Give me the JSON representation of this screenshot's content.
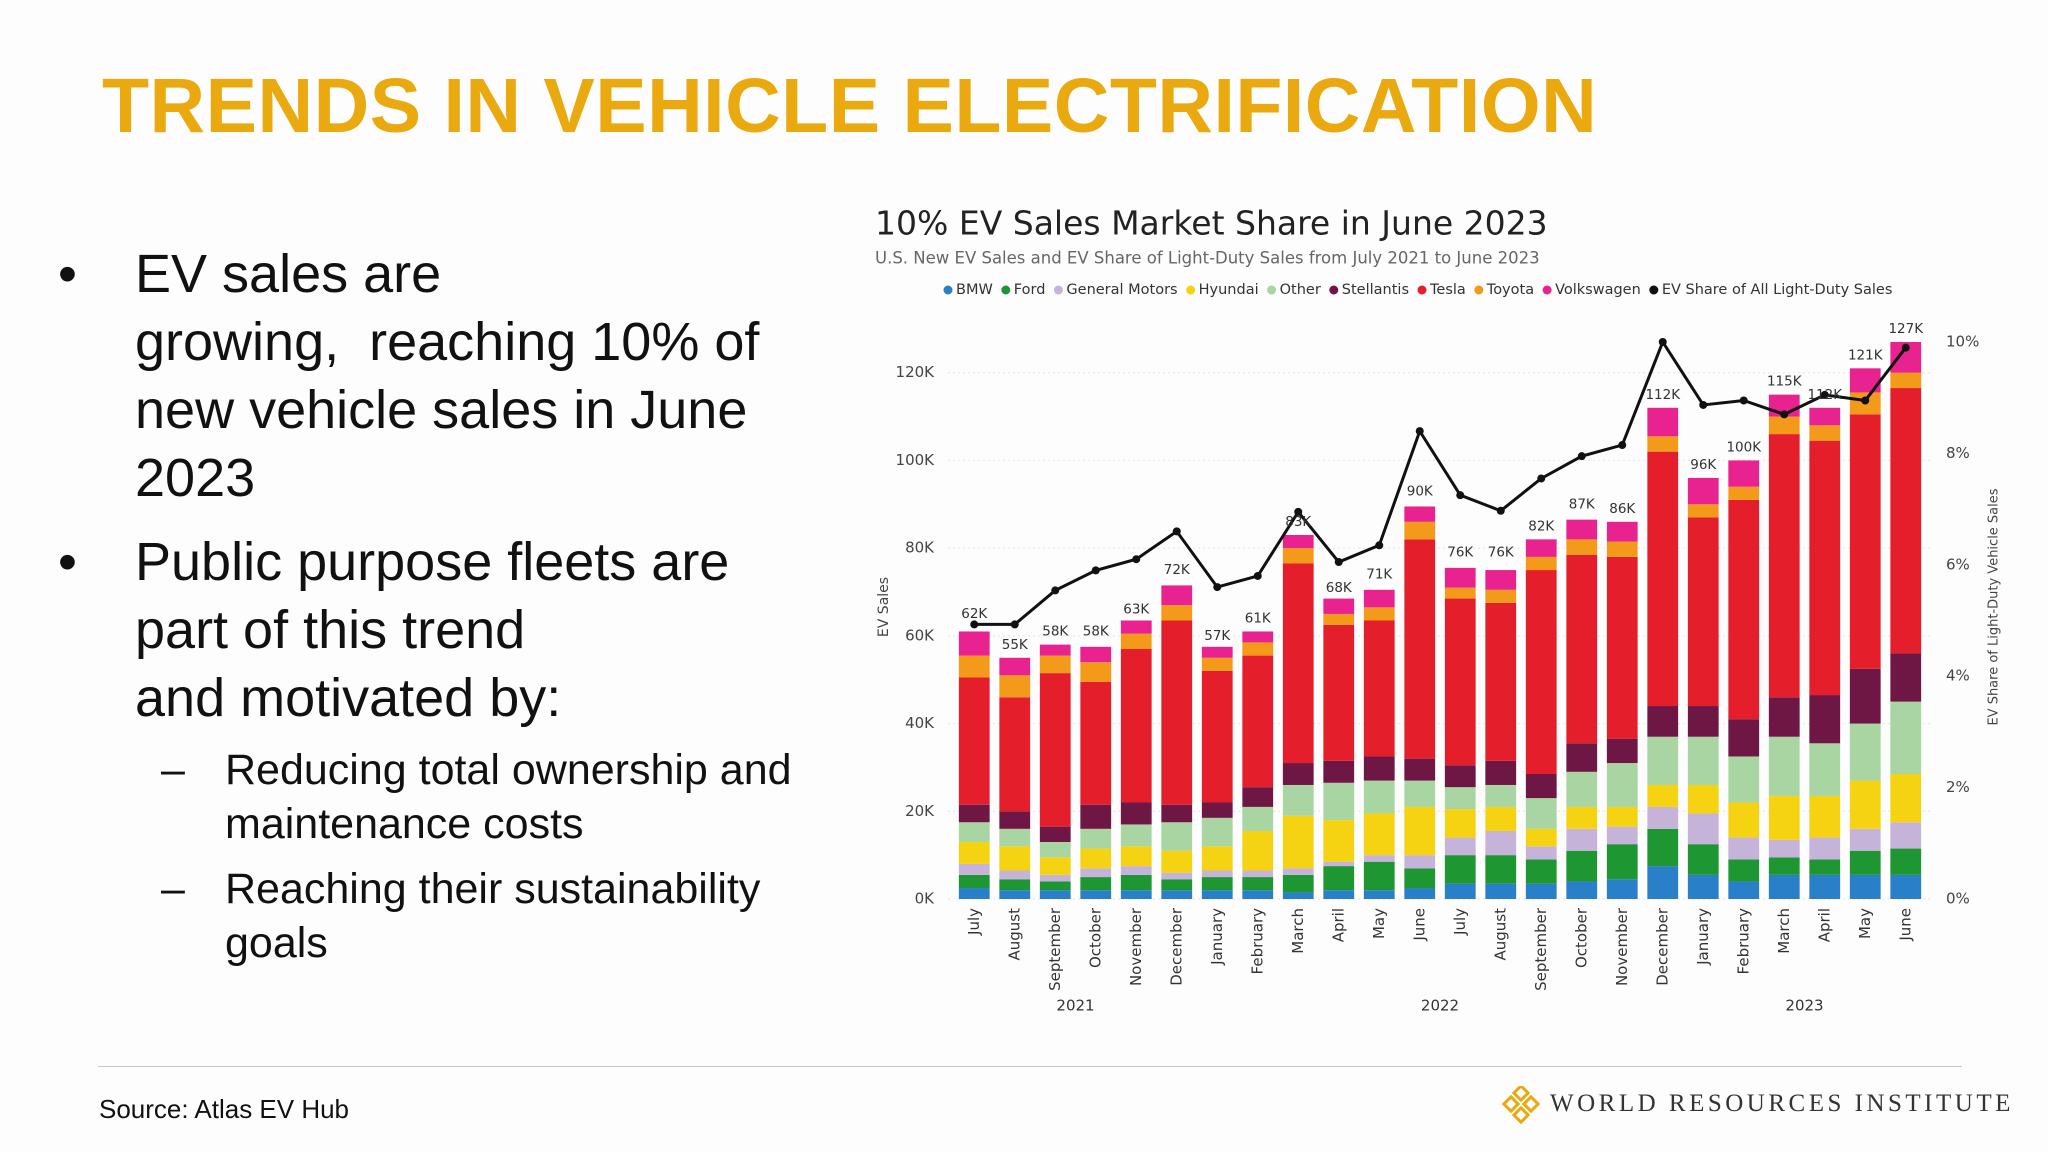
{
  "slide": {
    "title": "TRENDS IN VEHICLE ELECTRIFICATION",
    "bullets": [
      {
        "lines": [
          "EV sales are",
          "growing,  reaching 10% of",
          "new vehicle sales in June",
          "2023"
        ],
        "sub": []
      },
      {
        "lines": [
          "Public purpose fleets are",
          "part of this trend",
          "and motivated by:"
        ],
        "sub": [
          {
            "lines": [
              "Reducing total ownership and",
              "maintenance costs"
            ]
          },
          {
            "lines": [
              "Reaching their sustainability",
              "goals"
            ]
          }
        ]
      }
    ],
    "source": "Source: Atlas EV Hub",
    "logo": "WORLD RESOURCES INSTITUTE"
  },
  "chart_data": {
    "type": "bar",
    "stacked": true,
    "title": "10% EV Sales Market Share in June 2023",
    "subtitle": "U.S. New EV Sales and EV Share of Light-Duty Sales from July 2021 to June 2023",
    "y_label": "EV Sales",
    "y2_label": "EV Share of Light-Duty Vehicle Sales",
    "categories": [
      "July",
      "August",
      "September",
      "October",
      "November",
      "December",
      "January",
      "February",
      "March",
      "April",
      "May",
      "June",
      "July",
      "August",
      "September",
      "October",
      "November",
      "December",
      "January",
      "February",
      "March",
      "April",
      "May",
      "June"
    ],
    "year_labels": [
      "2021",
      "2022",
      "2023"
    ],
    "ylim": [
      0,
      127000
    ],
    "yticks": [
      {
        "value": 0,
        "label": "0K"
      },
      {
        "value": 20000,
        "label": "20K"
      },
      {
        "value": 40000,
        "label": "40K"
      },
      {
        "value": 60000,
        "label": "60K"
      },
      {
        "value": 80000,
        "label": "80K"
      },
      {
        "value": 100000,
        "label": "100K"
      },
      {
        "value": 120000,
        "label": "120K"
      }
    ],
    "y2lim": [
      0,
      10
    ],
    "y2ticks": [
      {
        "value": 0,
        "label": "0%"
      },
      {
        "value": 2,
        "label": "2%"
      },
      {
        "value": 4,
        "label": "4%"
      },
      {
        "value": 6,
        "label": "6%"
      },
      {
        "value": 8,
        "label": "8%"
      },
      {
        "value": 10,
        "label": "10%"
      }
    ],
    "grid": true,
    "legend": "top",
    "series": [
      {
        "name": "BMW",
        "color": "#2a7fc9",
        "values": [
          2500,
          2000,
          2000,
          2000,
          2000,
          2000,
          2000,
          2000,
          1500,
          2000,
          2000,
          2500,
          3500,
          3500,
          3500,
          4000,
          4500,
          7500,
          5500,
          4000,
          5500,
          5500,
          5500,
          5500
        ]
      },
      {
        "name": "Ford",
        "color": "#1e9632",
        "values": [
          3000,
          2500,
          2000,
          3000,
          3500,
          2500,
          3000,
          3000,
          4000,
          5500,
          6500,
          4500,
          6500,
          6500,
          5500,
          7000,
          8000,
          8500,
          7000,
          5000,
          4000,
          3500,
          5500,
          6000
        ]
      },
      {
        "name": "General Motors",
        "color": "#c5b3d9",
        "values": [
          2500,
          2000,
          1500,
          2000,
          2000,
          1500,
          1500,
          1500,
          1500,
          1000,
          1500,
          3000,
          4000,
          5500,
          3000,
          5000,
          4000,
          5000,
          7000,
          5000,
          4000,
          5000,
          5000,
          6000
        ]
      },
      {
        "name": "Hyundai",
        "color": "#f5d312",
        "values": [
          5000,
          5500,
          4000,
          4500,
          4500,
          5000,
          5500,
          9000,
          12000,
          9500,
          9500,
          11000,
          6500,
          5500,
          4000,
          5000,
          4500,
          5000,
          6500,
          8000,
          10000,
          9500,
          11000,
          11000
        ]
      },
      {
        "name": "Other",
        "color": "#a8d5a2",
        "values": [
          4500,
          4000,
          3500,
          4500,
          5000,
          6500,
          6500,
          5500,
          7000,
          8500,
          7500,
          6000,
          5000,
          5000,
          7000,
          8000,
          10000,
          11000,
          11000,
          10500,
          13500,
          12000,
          13000,
          16500
        ]
      },
      {
        "name": "Stellantis",
        "color": "#6e1745",
        "values": [
          4000,
          4000,
          3500,
          5500,
          5000,
          4000,
          3500,
          4500,
          5000,
          5000,
          5500,
          5000,
          5000,
          5500,
          5500,
          6500,
          5500,
          7000,
          7000,
          8500,
          9000,
          11000,
          12500,
          11000
        ]
      },
      {
        "name": "Tesla",
        "color": "#e41e2b",
        "values": [
          29000,
          26000,
          35000,
          28000,
          35000,
          42000,
          30000,
          30000,
          45500,
          31000,
          31000,
          50000,
          38000,
          36000,
          46500,
          43000,
          41500,
          58000,
          43000,
          50000,
          60000,
          58000,
          58000,
          60500
        ]
      },
      {
        "name": "Toyota",
        "color": "#f39a1b",
        "values": [
          5000,
          5000,
          4000,
          4500,
          3500,
          3500,
          3000,
          3000,
          3500,
          2500,
          3000,
          4000,
          2500,
          3000,
          3000,
          3500,
          3500,
          3500,
          3000,
          3000,
          4000,
          3500,
          5000,
          3500
        ]
      },
      {
        "name": "Volkswagen",
        "color": "#e8238f",
        "values": [
          5500,
          4000,
          2500,
          3500,
          3000,
          4500,
          2500,
          2500,
          3000,
          3500,
          4000,
          3500,
          4500,
          4500,
          4000,
          4500,
          4500,
          6500,
          6000,
          6000,
          5000,
          4000,
          5500,
          7000
        ]
      },
      {
        "name": "EV Share of All Light-Duty Sales",
        "color": "#111111",
        "type": "line",
        "axis": "y2",
        "values": [
          4.93,
          4.93,
          5.54,
          5.9,
          6.1,
          6.6,
          5.6,
          5.8,
          6.95,
          6.05,
          6.35,
          8.4,
          7.25,
          6.97,
          7.55,
          7.95,
          8.15,
          10.0,
          8.87,
          8.95,
          8.7,
          9.05,
          8.95,
          9.9
        ]
      }
    ],
    "totals": {
      "values": [
        62000,
        55000,
        58000,
        58000,
        63000,
        72000,
        57000,
        61000,
        83000,
        68000,
        71000,
        90000,
        76000,
        76000,
        82000,
        87000,
        86000,
        112000,
        96000,
        100000,
        115000,
        112000,
        121000,
        127000
      ],
      "value_labels": [
        "62K",
        "55K",
        "58K",
        "58K",
        "63K",
        "72K",
        "57K",
        "61K",
        "83K",
        "68K",
        "71K",
        "90K",
        "76K",
        "76K",
        "82K",
        "87K",
        "86K",
        "112K",
        "96K",
        "100K",
        "115K",
        "112K",
        "121K",
        "127K"
      ]
    }
  }
}
